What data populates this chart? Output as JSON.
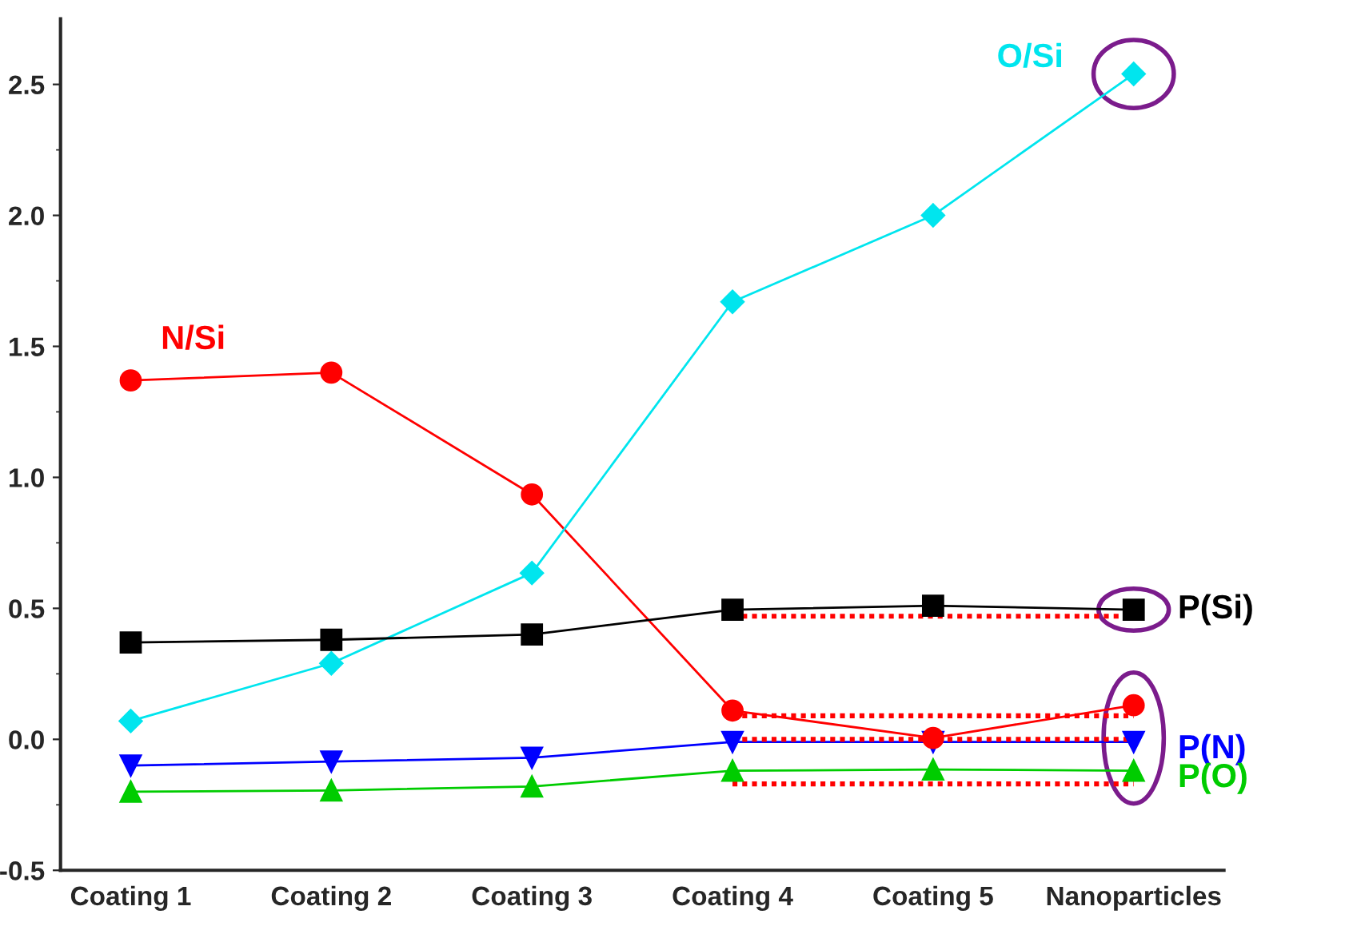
{
  "chart_data": {
    "type": "line",
    "categories": [
      "Coating 1",
      "Coating 2",
      "Coating 3",
      "Coating 4",
      "Coating 5",
      "Nanoparticles"
    ],
    "ylim": [
      -0.5,
      2.75
    ],
    "yticks": [
      {
        "value": -0.5,
        "label": "-0.5"
      },
      {
        "value": 0,
        "label": "0.0"
      },
      {
        "value": 0.5,
        "label": "0.5"
      },
      {
        "value": 1,
        "label": "1.0"
      },
      {
        "value": 1.5,
        "label": "1.5"
      },
      {
        "value": 2,
        "label": "2.0"
      },
      {
        "value": 2.5,
        "label": "2.5"
      }
    ],
    "grid": false,
    "legend": false,
    "series": [
      {
        "name": "N/Si",
        "color": "#ff0000",
        "marker": "circle",
        "values": [
          1.37,
          1.4,
          0.935,
          0.11,
          0.005,
          0.13
        ]
      },
      {
        "name": "O/Si",
        "color": "#00e5ee",
        "marker": "diamond",
        "values": [
          0.07,
          0.29,
          0.635,
          1.67,
          2.0,
          2.54
        ]
      },
      {
        "name": "P(Si)",
        "color": "#000000",
        "marker": "square",
        "values": [
          0.37,
          0.38,
          0.4,
          0.495,
          0.51,
          0.495
        ]
      },
      {
        "name": "P(N)",
        "color": "#0000ff",
        "marker": "triangle",
        "values": [
          -0.1,
          -0.085,
          -0.07,
          -0.01,
          -0.01,
          -0.01
        ]
      },
      {
        "name": "P(O)",
        "color": "#00cc00",
        "marker": "triangle",
        "values": [
          -0.2,
          -0.195,
          -0.18,
          -0.12,
          -0.115,
          -0.12
        ]
      },
      {
        "color": "#ff0000",
        "marker": "none",
        "line_style": "dotted",
        "values": [
          null,
          null,
          null,
          0.47,
          0.47,
          0.47
        ]
      },
      {
        "color": "#ff0000",
        "marker": "none",
        "line_style": "dotted",
        "values": [
          null,
          null,
          null,
          0.09,
          0.09,
          0.09
        ]
      },
      {
        "color": "#ff0000",
        "marker": "none",
        "line_style": "dotted",
        "values": [
          null,
          null,
          null,
          0.0,
          0.0,
          0.0
        ]
      },
      {
        "color": "#ff0000",
        "marker": "none",
        "line_style": "dotted",
        "values": [
          null,
          null,
          null,
          -0.17,
          -0.17,
          -0.17
        ]
      }
    ]
  }
}
